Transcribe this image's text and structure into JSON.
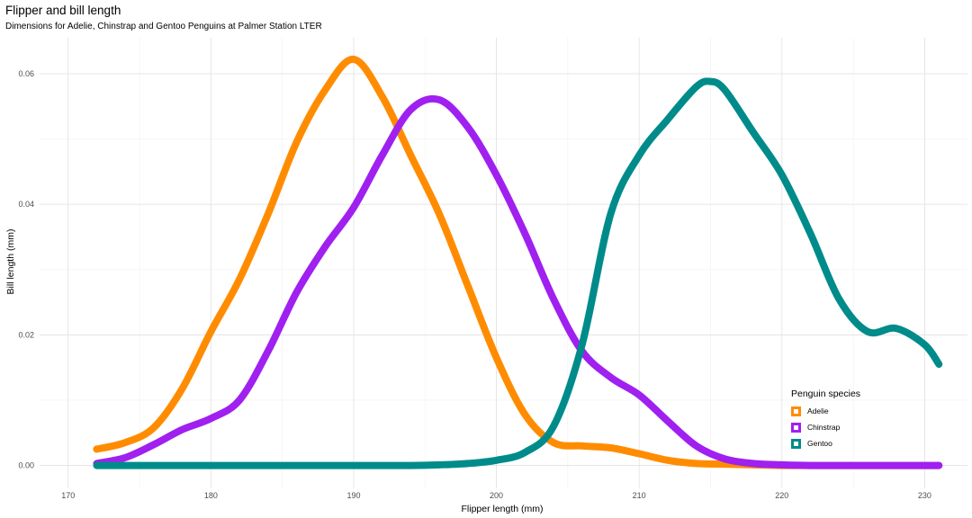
{
  "chart_data": {
    "type": "line",
    "title": "Flipper and bill length",
    "subtitle": "Dimensions for Adelie, Chinstrap and Gentoo Penguins at Palmer Station LTER",
    "xlabel": "Flipper length (mm)",
    "ylabel": "Bill length (mm)",
    "xlim": [
      168,
      233
    ],
    "ylim": [
      -0.0035,
      0.0655
    ],
    "x_ticks": [
      170,
      180,
      190,
      200,
      210,
      220,
      230
    ],
    "y_ticks": [
      0.0,
      0.02,
      0.04,
      0.06
    ],
    "y_tick_labels": [
      "0.00",
      "0.02",
      "0.04",
      "0.06"
    ],
    "grid": true,
    "legend": {
      "title": "Penguin species",
      "position": "bottom-right"
    },
    "series": [
      {
        "name": "Adelie",
        "color": "#FF8C00",
        "x": [
          172,
          174,
          176,
          178,
          180,
          182,
          184,
          186,
          188,
          190,
          192,
          194,
          196,
          198,
          200,
          202,
          204,
          206,
          208,
          210,
          212,
          214,
          216,
          218,
          220,
          222,
          224,
          226,
          228,
          230,
          231
        ],
        "y": [
          0.0025,
          0.0035,
          0.0058,
          0.0118,
          0.0205,
          0.0285,
          0.0385,
          0.0495,
          0.0575,
          0.0622,
          0.0565,
          0.0475,
          0.0385,
          0.0275,
          0.0165,
          0.0078,
          0.0035,
          0.003,
          0.0027,
          0.0018,
          0.0008,
          0.0003,
          0.0002,
          0.0001,
          0.0,
          0.0,
          0.0,
          0.0,
          0.0,
          0.0,
          0.0
        ]
      },
      {
        "name": "Chinstrap",
        "color": "#A020F0",
        "x": [
          172,
          174,
          176,
          178,
          180,
          182,
          184,
          186,
          188,
          190,
          192,
          194,
          196,
          198,
          200,
          202,
          204,
          206,
          208,
          210,
          212,
          214,
          216,
          218,
          220,
          222,
          224,
          226,
          228,
          230,
          231
        ],
        "y": [
          0.0003,
          0.0012,
          0.0032,
          0.0055,
          0.0072,
          0.01,
          0.0175,
          0.0265,
          0.0335,
          0.0395,
          0.0475,
          0.0545,
          0.056,
          0.0518,
          0.0445,
          0.0355,
          0.0255,
          0.0175,
          0.0135,
          0.0108,
          0.0068,
          0.003,
          0.001,
          0.0003,
          0.0001,
          0.0,
          0.0,
          0.0,
          0.0,
          0.0,
          0.0
        ]
      },
      {
        "name": "Gentoo",
        "color": "#008B8B",
        "x": [
          172,
          174,
          176,
          178,
          180,
          182,
          184,
          186,
          188,
          190,
          192,
          194,
          196,
          198,
          200,
          202,
          204,
          206,
          208,
          210,
          212,
          214,
          215,
          216,
          218,
          220,
          222,
          224,
          226,
          228,
          230,
          231
        ],
        "y": [
          0.0,
          0.0,
          0.0,
          0.0,
          0.0,
          0.0,
          0.0,
          0.0,
          0.0,
          0.0,
          0.0,
          0.0,
          0.0001,
          0.0003,
          0.0008,
          0.002,
          0.006,
          0.0185,
          0.0385,
          0.0475,
          0.053,
          0.058,
          0.0588,
          0.0575,
          0.051,
          0.0445,
          0.0355,
          0.0255,
          0.0205,
          0.021,
          0.0185,
          0.0155
        ]
      }
    ]
  }
}
